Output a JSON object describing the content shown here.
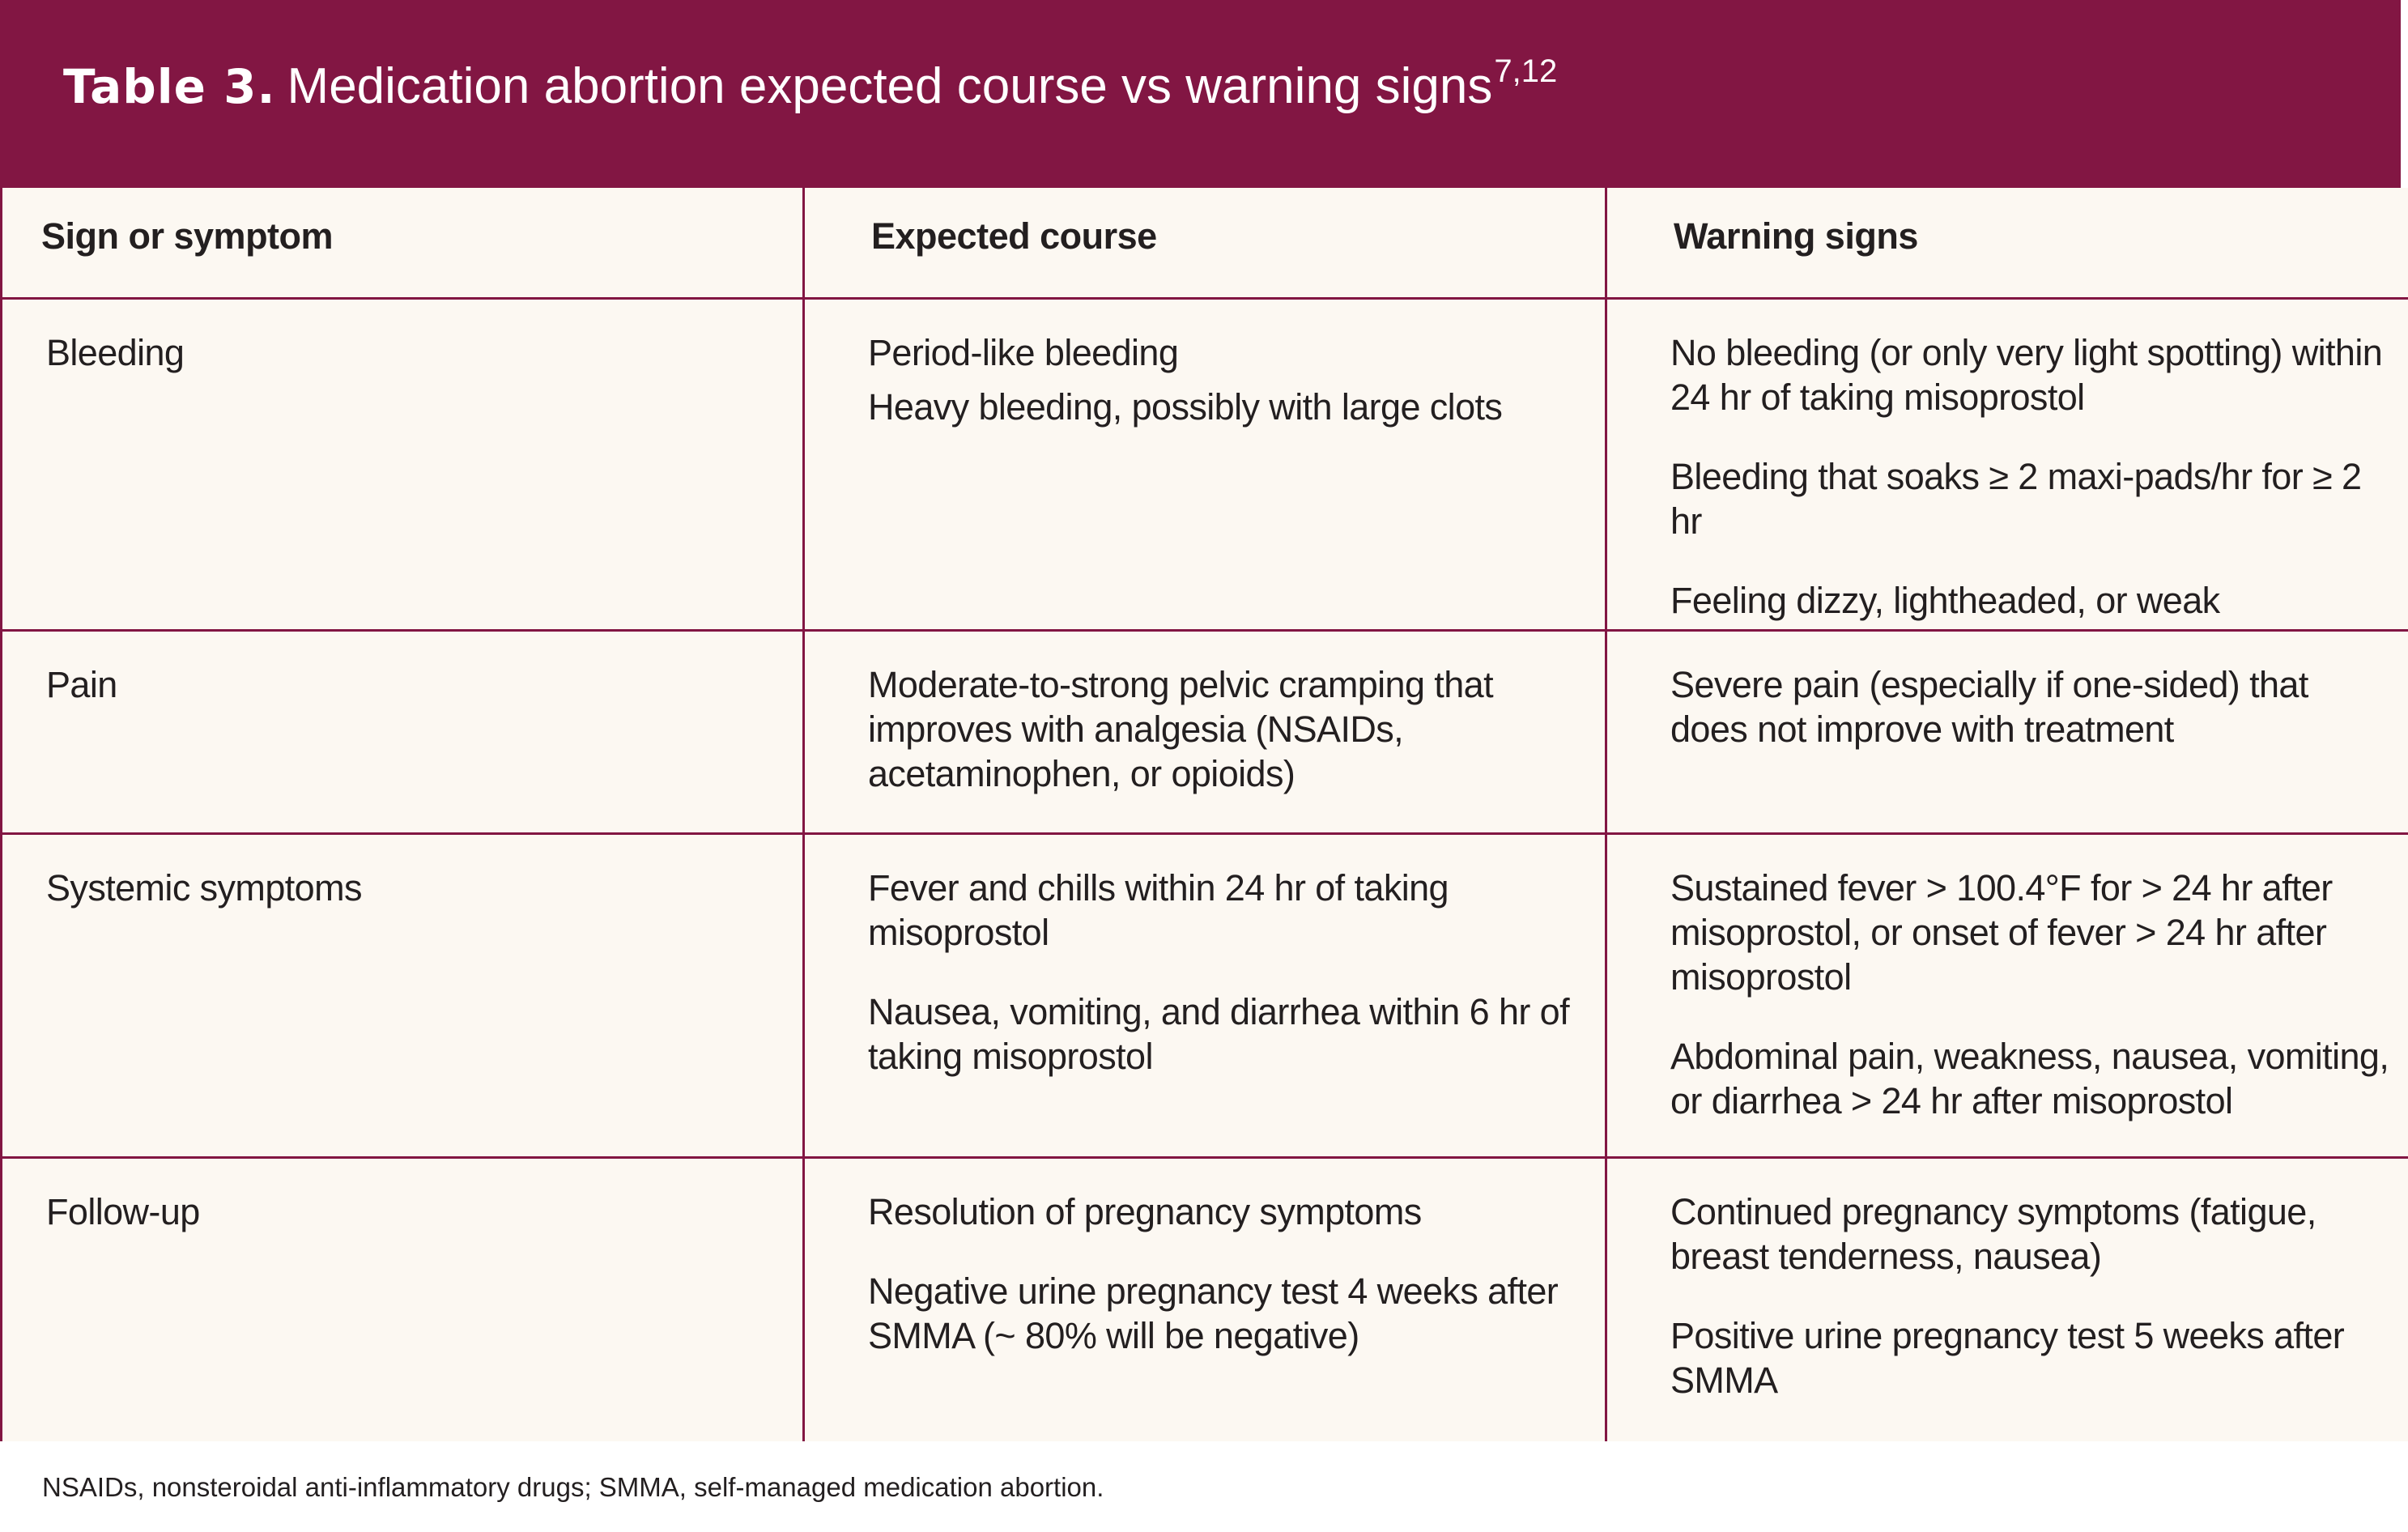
{
  "header": {
    "label": "Table 3.",
    "title": "Medication abortion expected course vs warning signs",
    "references": "7,12"
  },
  "table": {
    "columns": [
      "Sign or symptom",
      "Expected course",
      "Warning signs"
    ],
    "rows": [
      {
        "sign": "Bleeding",
        "expected": [
          "Period-like bleeding",
          "Heavy bleeding, possibly with large clots"
        ],
        "warning": [
          "No bleeding (or only very light spotting) within 24 hr of taking misoprostol",
          "Bleeding that soaks ≥ 2 maxi-pads/hr for ≥ 2 hr",
          "Feeling dizzy, lightheaded, or weak"
        ]
      },
      {
        "sign": "Pain",
        "expected": [
          "Moderate-to-strong pelvic cramping that improves with analgesia (NSAIDs, acetaminophen, or opioids)"
        ],
        "warning": [
          "Severe pain (especially if one-sided) that does not improve with treatment"
        ]
      },
      {
        "sign": "Systemic symptoms",
        "expected": [
          "Fever and chills within 24 hr of taking misoprostol",
          "Nausea, vomiting, and diarrhea within 6 hr of taking misoprostol"
        ],
        "warning": [
          "Sustained fever > 100.4°F for > 24 hr after misoprostol, or onset of fever > 24 hr after misoprostol",
          "Abdominal pain, weakness, nausea, vomiting, or diarrhea > 24 hr after misoprostol"
        ]
      },
      {
        "sign": "Follow-up",
        "expected": [
          "Resolution of pregnancy symptoms",
          "Negative urine pregnancy test 4 weeks after SMMA (~ 80% will be negative)"
        ],
        "warning": [
          "Continued pregnancy symptoms (fatigue, breast tenderness, nausea)",
          "Positive urine pregnancy test 5 weeks after SMMA"
        ]
      }
    ]
  },
  "footnote": "NSAIDs, nonsteroidal anti-inflammatory drugs; SMMA, self-managed medication abortion.",
  "colors": {
    "header_bg": "#821643",
    "table_bg": "#fcf8f2",
    "rule": "#821643",
    "text": "#231f20"
  }
}
